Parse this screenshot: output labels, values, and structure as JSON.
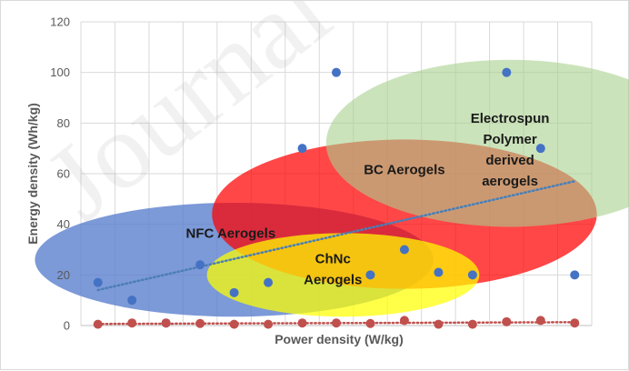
{
  "chart_data": {
    "type": "scatter",
    "title": "",
    "xlabel": "Power density (W/kg)",
    "ylabel": "Energy density (Wh/kg)",
    "ylim": [
      0,
      120
    ],
    "y_ticks": [
      0,
      20,
      40,
      60,
      80,
      100,
      120
    ],
    "x_ticks": [
      1,
      2,
      3,
      4,
      5,
      6,
      7,
      8,
      9,
      10,
      11,
      12,
      13,
      14,
      15
    ],
    "x_tick_labels_shown": false,
    "grid": true,
    "legend": "none",
    "series": [
      {
        "color": "#4472c4",
        "x": [
          1,
          2,
          3,
          4,
          5,
          6,
          7,
          8,
          9,
          10,
          11,
          12,
          13,
          14,
          15
        ],
        "y": [
          17,
          10,
          1,
          24,
          13,
          17,
          70,
          100,
          20,
          30,
          21,
          20,
          100,
          70,
          20
        ]
      },
      {
        "color": "#c0504d",
        "x": [
          1,
          2,
          3,
          4,
          5,
          6,
          7,
          8,
          9,
          10,
          11,
          12,
          13,
          14,
          15
        ],
        "y": [
          0.5,
          1,
          1,
          0.8,
          0.5,
          0.5,
          1,
          1,
          0.8,
          2,
          0.5,
          0.5,
          1.5,
          2,
          1
        ]
      }
    ],
    "trendlines": [
      {
        "series": 0,
        "type": "linear",
        "color": "#4a7fb5",
        "style": "dotted"
      },
      {
        "series": 1,
        "type": "linear",
        "color": "#c0504d",
        "style": "dotted"
      }
    ],
    "regions": [
      {
        "label_lines": [
          "NFC Aerogels"
        ],
        "color": "#5b7fce",
        "opacity": 0.8,
        "cx": 5,
        "cy": 26,
        "rx": 5.85,
        "ry": 22.5,
        "label_at": [
          4.9,
          34.6
        ]
      },
      {
        "label_lines": [
          "BC Aerogels"
        ],
        "color": "#ff0000",
        "opacity": 0.72,
        "cx": 10,
        "cy": 44,
        "rx": 5.65,
        "ry": 29.5,
        "label_at": [
          10,
          59.8
        ]
      },
      {
        "label_lines": [
          "Electrospun",
          "Polymer",
          "derived",
          "aerogels"
        ],
        "color": "#a9d18e",
        "opacity": 0.6,
        "cx": 13.1,
        "cy": 72,
        "rx": 5.4,
        "ry": 33,
        "label_at": [
          13.1,
          80.2
        ]
      },
      {
        "label_lines": [
          "ChNc",
          "Aerogels"
        ],
        "color": "#ffff00",
        "opacity": 0.72,
        "cx": 8.2,
        "cy": 20,
        "rx": 4,
        "ry": 16.5,
        "label_at": [
          7.9,
          24.6
        ]
      }
    ]
  },
  "watermark": {
    "text": "Journal"
  }
}
